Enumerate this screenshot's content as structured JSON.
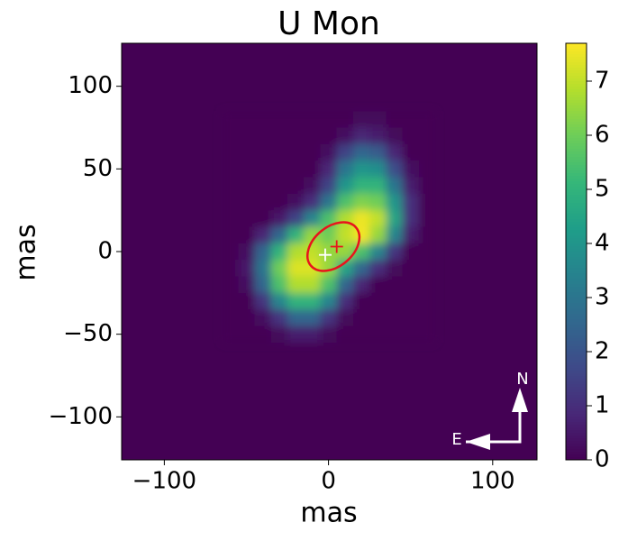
{
  "chart_data": {
    "type": "heatmap",
    "title": "U Mon",
    "xlabel": "mas",
    "ylabel": "mas",
    "xlim": [
      -126,
      127
    ],
    "ylim": [
      -126,
      126
    ],
    "xticks": [
      {
        "value": -100,
        "label": "−100"
      },
      0,
      100
    ],
    "yticks": [
      {
        "value": -100,
        "label": "−100"
      },
      {
        "value": -50,
        "label": "−50"
      },
      0,
      50,
      100
    ],
    "x": [
      -60,
      -50,
      -40,
      -30,
      -20,
      -10,
      0,
      10,
      20,
      30,
      40,
      50,
      60
    ],
    "y": [
      80,
      70,
      60,
      50,
      40,
      30,
      20,
      10,
      0,
      -10,
      -20,
      -30,
      -40,
      -50
    ],
    "z": [
      [
        0,
        0,
        0,
        0,
        0,
        0,
        0,
        0,
        0.2,
        0.2,
        0,
        0,
        0
      ],
      [
        0,
        0,
        0,
        0,
        0,
        0,
        0,
        0.3,
        0.8,
        0.6,
        0.2,
        0,
        0
      ],
      [
        0,
        0,
        0,
        0,
        0,
        0,
        0.3,
        1.5,
        2.5,
        2.2,
        0.8,
        0,
        0
      ],
      [
        0,
        0,
        0,
        0,
        0,
        0,
        0.8,
        3,
        4,
        3.8,
        1.8,
        0.3,
        0
      ],
      [
        0,
        0,
        0,
        0,
        0,
        0.3,
        1.5,
        4,
        5,
        5,
        3,
        0.6,
        0
      ],
      [
        0,
        0,
        0,
        0,
        0.3,
        1,
        3,
        5.5,
        6.2,
        6,
        4,
        1,
        0
      ],
      [
        0,
        0,
        0,
        0.5,
        1.5,
        3.5,
        5.5,
        6.8,
        7.5,
        7,
        4.5,
        1,
        0
      ],
      [
        0,
        0,
        0.8,
        2.5,
        5,
        6.5,
        6,
        7,
        7.6,
        6.5,
        3.5,
        0.6,
        0
      ],
      [
        0,
        0.3,
        2.5,
        5,
        6.8,
        7,
        6.5,
        6.5,
        5.5,
        3.5,
        1.2,
        0,
        0
      ],
      [
        0,
        0.5,
        3,
        6,
        7.3,
        7.3,
        6.5,
        4.5,
        2.5,
        1,
        0.2,
        0,
        0
      ],
      [
        0,
        0.3,
        2.5,
        5.5,
        6.8,
        6.8,
        5.5,
        2.5,
        0.8,
        0,
        0,
        0,
        0
      ],
      [
        0,
        0,
        1.2,
        3.5,
        5,
        5,
        3.5,
        1,
        0,
        0,
        0,
        0,
        0
      ],
      [
        0,
        0,
        0.3,
        1.2,
        2.5,
        2.5,
        1.2,
        0.2,
        0,
        0,
        0,
        0,
        0
      ],
      [
        0,
        0,
        0,
        0.2,
        0.6,
        0.6,
        0.2,
        0,
        0,
        0,
        0,
        0,
        0
      ]
    ],
    "clim": [
      0,
      7.7
    ],
    "cticks": [
      0,
      1,
      2,
      3,
      4,
      5,
      6,
      7
    ],
    "colormap": "viridis",
    "ellipse": {
      "x": 3,
      "y": 3,
      "a": 18,
      "b": 12,
      "angle": 40,
      "color": "#e8141c"
    },
    "markers": [
      {
        "x": -2,
        "y": -2,
        "color": "#ffffff"
      },
      {
        "x": 5,
        "y": 3,
        "color": "#e8141c"
      }
    ],
    "compass": {
      "north": "N",
      "east": "E"
    }
  }
}
